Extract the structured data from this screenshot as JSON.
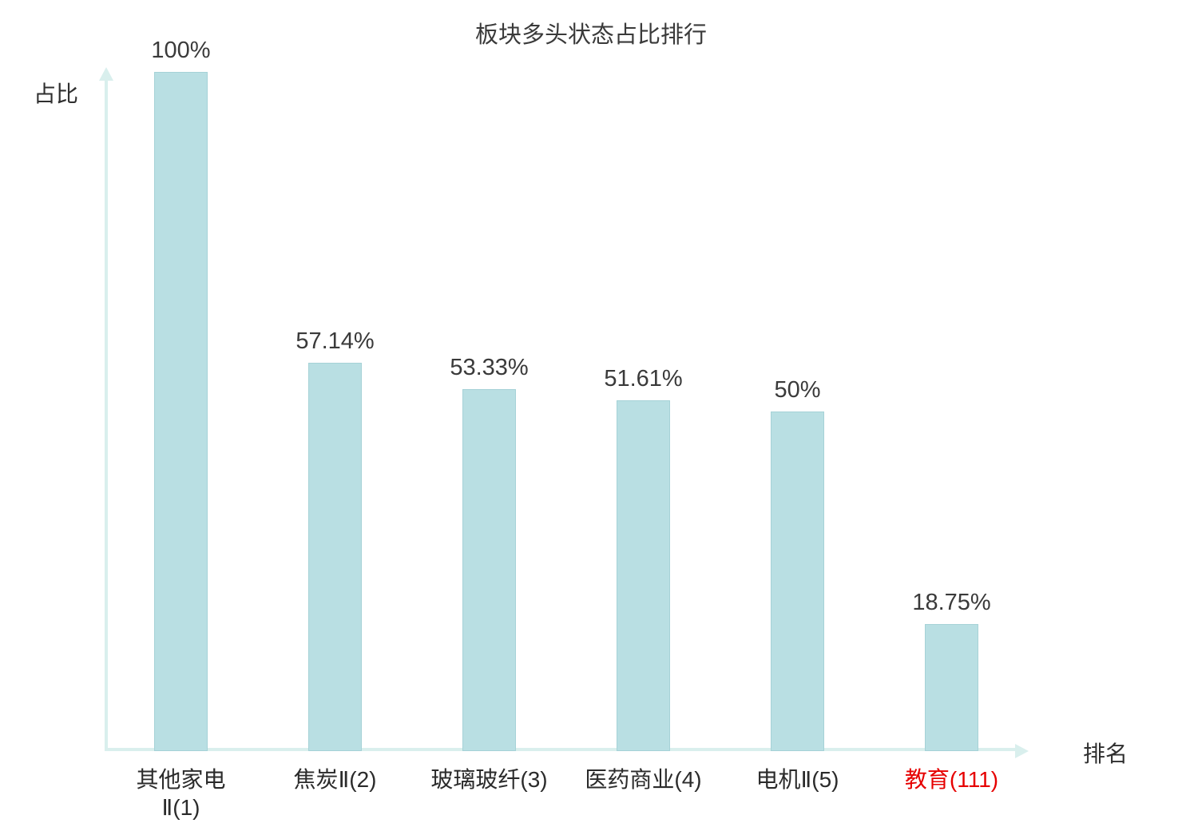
{
  "title": "板块多头状态占比排行",
  "y_axis_label": "占比",
  "x_axis_label": "排名",
  "colors": {
    "bar_fill": "#b9dfe3",
    "bar_border": "#a6d2d7",
    "axis": "#d9efed",
    "text": "#3a3a3a",
    "highlight": "#e60000"
  },
  "chart_data": {
    "type": "bar",
    "title": "板块多头状态占比排行",
    "xlabel": "排名",
    "ylabel": "占比",
    "ylim": [
      0,
      100
    ],
    "grid": false,
    "legend": false,
    "categories": [
      "其他家电Ⅱ(1)",
      "焦炭Ⅱ(2)",
      "玻璃玻纤(3)",
      "医药商业(4)",
      "电机Ⅱ(5)",
      "教育(111)"
    ],
    "category_display": [
      "其他家电\nⅡ(1)",
      "焦炭Ⅱ(2)",
      "玻璃玻纤(3)",
      "医药商业(4)",
      "电机Ⅱ(5)",
      "教育(111)"
    ],
    "values": [
      100,
      57.14,
      53.33,
      51.61,
      50,
      18.75
    ],
    "value_labels": [
      "100%",
      "57.14%",
      "53.33%",
      "51.61%",
      "50%",
      "18.75%"
    ],
    "highlight_index": 5
  }
}
